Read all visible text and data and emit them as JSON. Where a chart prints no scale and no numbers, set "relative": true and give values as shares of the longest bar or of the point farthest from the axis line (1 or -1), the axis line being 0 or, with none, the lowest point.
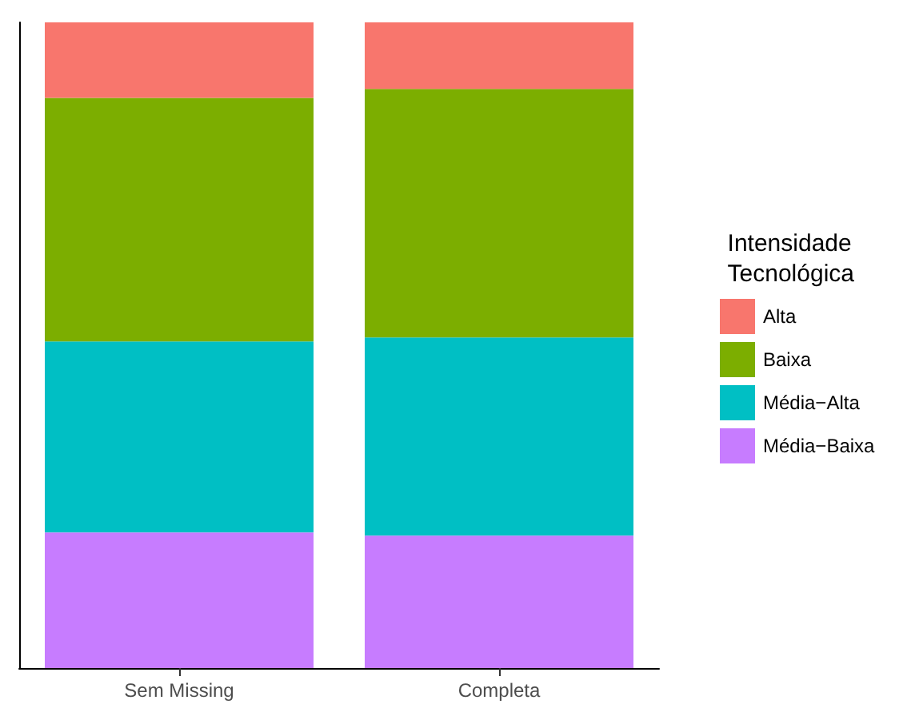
{
  "chart_data": {
    "type": "bar",
    "stacked": true,
    "relative": true,
    "legend_title": "Intensidade\nTecnológica",
    "legend": "right",
    "categories": [
      "Sem Missing",
      "Completa"
    ],
    "series": [
      {
        "name": "Média−Baixa",
        "color": "#c77cff",
        "values": [
          0.21,
          0.205
        ]
      },
      {
        "name": "Média−Alta",
        "color": "#00bfc4",
        "values": [
          0.296,
          0.307
        ]
      },
      {
        "name": "Baixa",
        "color": "#7cae00",
        "values": [
          0.377,
          0.385
        ]
      },
      {
        "name": "Alta",
        "color": "#f8766d",
        "values": [
          0.117,
          0.103
        ]
      }
    ]
  }
}
